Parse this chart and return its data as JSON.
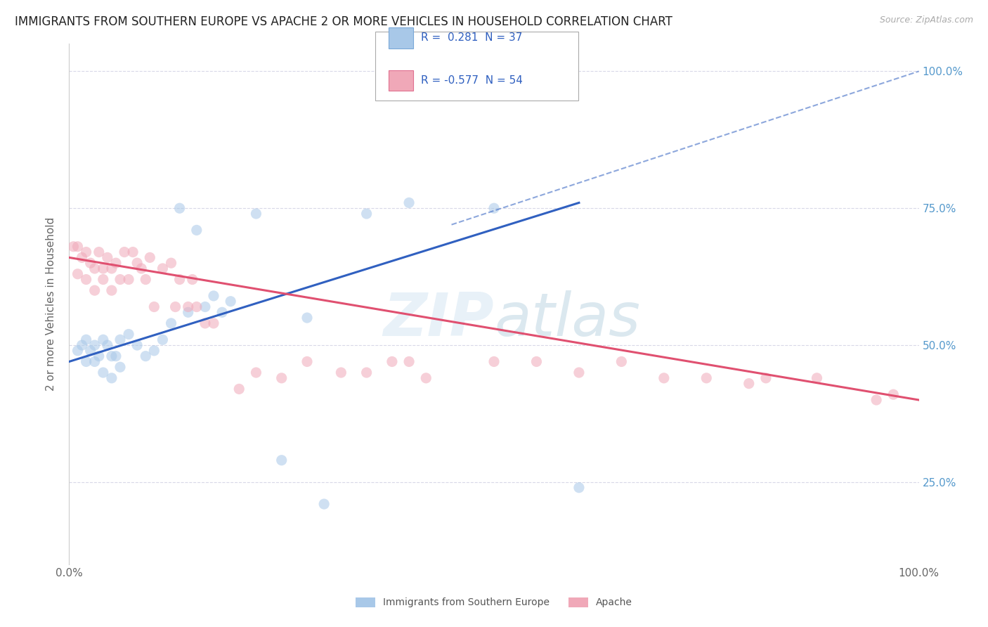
{
  "title": "IMMIGRANTS FROM SOUTHERN EUROPE VS APACHE 2 OR MORE VEHICLES IN HOUSEHOLD CORRELATION CHART",
  "source": "Source: ZipAtlas.com",
  "ylabel": "2 or more Vehicles in Household",
  "xlim": [
    0,
    100
  ],
  "ylim": [
    10,
    105
  ],
  "yticks": [
    25,
    50,
    75,
    100
  ],
  "ytick_labels": [
    "25.0%",
    "50.0%",
    "75.0%",
    "100.0%"
  ],
  "legend_box": {
    "blue_r": "0.281",
    "blue_n": "37",
    "pink_r": "-0.577",
    "pink_n": "54"
  },
  "blue_scatter": [
    [
      1.0,
      49
    ],
    [
      1.5,
      50
    ],
    [
      2.0,
      47
    ],
    [
      2.0,
      51
    ],
    [
      2.5,
      49
    ],
    [
      3.0,
      50
    ],
    [
      3.0,
      47
    ],
    [
      3.5,
      48
    ],
    [
      4.0,
      51
    ],
    [
      4.0,
      45
    ],
    [
      4.5,
      50
    ],
    [
      5.0,
      48
    ],
    [
      5.0,
      44
    ],
    [
      5.5,
      48
    ],
    [
      6.0,
      51
    ],
    [
      6.0,
      46
    ],
    [
      7.0,
      52
    ],
    [
      8.0,
      50
    ],
    [
      9.0,
      48
    ],
    [
      10.0,
      49
    ],
    [
      11.0,
      51
    ],
    [
      12.0,
      54
    ],
    [
      13.0,
      75
    ],
    [
      15.0,
      71
    ],
    [
      16.0,
      57
    ],
    [
      17.0,
      59
    ],
    [
      18.0,
      56
    ],
    [
      19.0,
      58
    ],
    [
      22.0,
      74
    ],
    [
      25.0,
      29
    ],
    [
      30.0,
      21
    ],
    [
      35.0,
      74
    ],
    [
      40.0,
      76
    ],
    [
      50.0,
      75
    ],
    [
      60.0,
      24
    ],
    [
      28.0,
      55
    ],
    [
      14.0,
      56
    ]
  ],
  "pink_scatter": [
    [
      0.5,
      68
    ],
    [
      1.0,
      63
    ],
    [
      1.0,
      68
    ],
    [
      1.5,
      66
    ],
    [
      2.0,
      67
    ],
    [
      2.0,
      62
    ],
    [
      2.5,
      65
    ],
    [
      3.0,
      64
    ],
    [
      3.0,
      60
    ],
    [
      3.5,
      67
    ],
    [
      4.0,
      64
    ],
    [
      4.0,
      62
    ],
    [
      4.5,
      66
    ],
    [
      5.0,
      64
    ],
    [
      5.0,
      60
    ],
    [
      5.5,
      65
    ],
    [
      6.0,
      62
    ],
    [
      6.5,
      67
    ],
    [
      7.0,
      62
    ],
    [
      7.5,
      67
    ],
    [
      8.0,
      65
    ],
    [
      8.5,
      64
    ],
    [
      9.0,
      62
    ],
    [
      9.5,
      66
    ],
    [
      10.0,
      57
    ],
    [
      11.0,
      64
    ],
    [
      12.0,
      65
    ],
    [
      12.5,
      57
    ],
    [
      13.0,
      62
    ],
    [
      14.0,
      57
    ],
    [
      14.5,
      62
    ],
    [
      15.0,
      57
    ],
    [
      16.0,
      54
    ],
    [
      17.0,
      54
    ],
    [
      20.0,
      42
    ],
    [
      22.0,
      45
    ],
    [
      25.0,
      44
    ],
    [
      28.0,
      47
    ],
    [
      32.0,
      45
    ],
    [
      35.0,
      45
    ],
    [
      38.0,
      47
    ],
    [
      40.0,
      47
    ],
    [
      42.0,
      44
    ],
    [
      50.0,
      47
    ],
    [
      55.0,
      47
    ],
    [
      60.0,
      45
    ],
    [
      65.0,
      47
    ],
    [
      70.0,
      44
    ],
    [
      75.0,
      44
    ],
    [
      80.0,
      43
    ],
    [
      82.0,
      44
    ],
    [
      88.0,
      44
    ],
    [
      95.0,
      40
    ],
    [
      97.0,
      41
    ]
  ],
  "blue_line": {
    "x0": 0,
    "y0": 47,
    "x1": 60,
    "y1": 76
  },
  "pink_line": {
    "x0": 0,
    "y0": 66,
    "x1": 100,
    "y1": 40
  },
  "blue_dash_line": {
    "x0": 45,
    "y0": 72,
    "x1": 100,
    "y1": 100
  },
  "blue_color": "#a8c8e8",
  "pink_color": "#f0a8b8",
  "blue_line_color": "#3060c0",
  "pink_line_color": "#e05070",
  "background_color": "#ffffff",
  "grid_color": "#d8d8e8",
  "title_fontsize": 12,
  "axis_fontsize": 11,
  "scatter_alpha": 0.55,
  "scatter_size": 120
}
